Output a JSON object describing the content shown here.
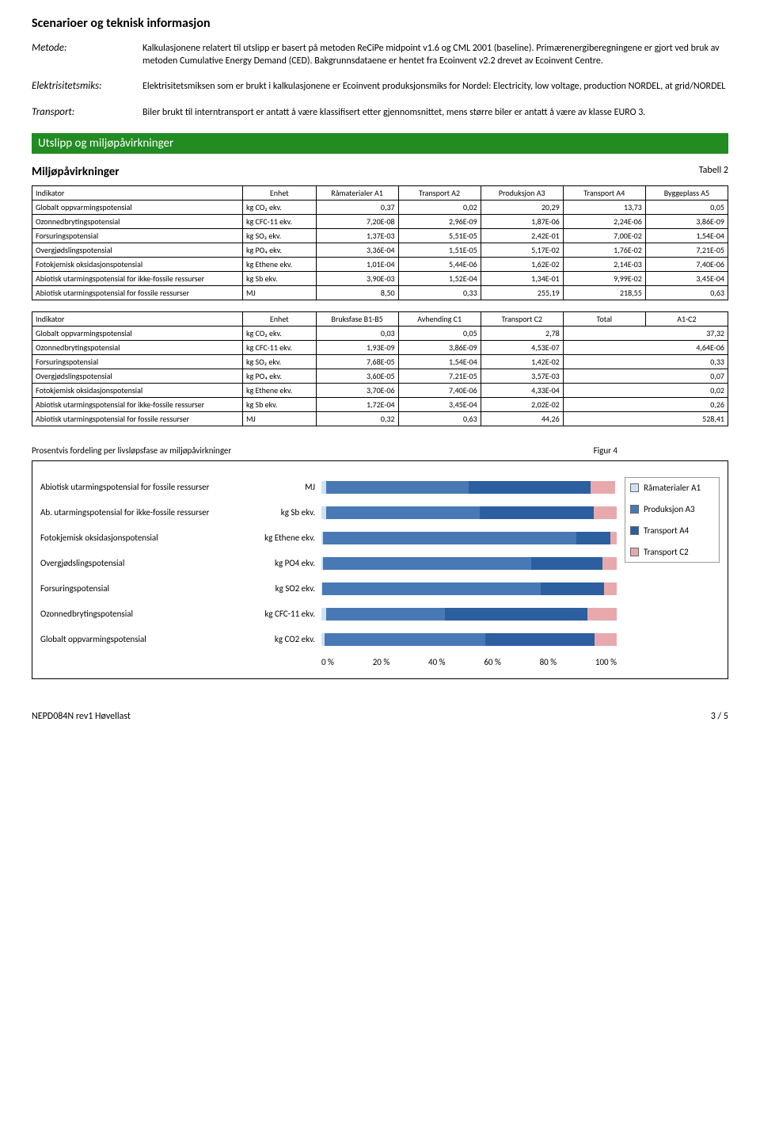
{
  "page_title": "Scenarioer og teknisk informasjon",
  "metode": {
    "label": "Metode:",
    "text": "Kalkulasjonene relatert til utslipp er basert på metoden ReCiPe midpoint v1.6 og CML 2001 (baseline). Primærenergiberegningene er gjort ved bruk av metoden Cumulative Energy Demand (CED). Bakgrunnsdataene er hentet fra Ecoinvent v2.2 drevet av Ecoinvent Centre."
  },
  "elektrisitetsmiks": {
    "label": "Elektrisitetsmiks:",
    "text": "Elektrisitetsmiksen som er brukt i kalkulasjonene er Ecoinvent produksjonsmiks for Nordel: Electricity, low voltage, production NORDEL, at grid/NORDEL"
  },
  "transport": {
    "label": "Transport:",
    "text": "Biler brukt til interntransport er antatt å være klassifisert etter gjennomsnittet, mens større biler er antatt å være av klasse EURO 3."
  },
  "green_bar": "Utslipp og miljøpåvirkninger",
  "miljopavirkninger": {
    "heading": "Miljøpåvirkninger",
    "tabell_label": "Tabell 2"
  },
  "table1": {
    "columns": [
      "Indikator",
      "Enhet",
      "Råmaterialer A1",
      "Transport A2",
      "Produksjon A3",
      "Transport A4",
      "Byggeplass A5"
    ],
    "rows": [
      [
        "Globalt oppvarmingspotensial",
        "kg CO₂ ekv.",
        "0,37",
        "0,02",
        "20,29",
        "13,73",
        "0,05"
      ],
      [
        "Ozonnedbrytingspotensial",
        "kg CFC-11 ekv.",
        "7,20E-08",
        "2,96E-09",
        "1,87E-06",
        "2,24E-06",
        "3,86E-09"
      ],
      [
        "Forsuringspotensial",
        "kg SO₂ ekv.",
        "1,37E-03",
        "5,51E-05",
        "2,42E-01",
        "7,00E-02",
        "1,54E-04"
      ],
      [
        "Overgjødslingspotensial",
        "kg PO₄ ekv.",
        "3,36E-04",
        "1,51E-05",
        "5,17E-02",
        "1,76E-02",
        "7,21E-05"
      ],
      [
        "Fotokjemisk oksidasjonspotensial",
        "kg Ethene ekv.",
        "1,01E-04",
        "5,44E-06",
        "1,62E-02",
        "2,14E-03",
        "7,40E-06"
      ],
      [
        "Abiotisk utarmingspotensial for ikke-fossile ressurser",
        "kg Sb ekv.",
        "3,90E-03",
        "1,52E-04",
        "1,34E-01",
        "9,99E-02",
        "3,45E-04"
      ],
      [
        "Abiotisk utarmingspotensial for fossile ressurser",
        "MJ",
        "8,50",
        "0,33",
        "255,19",
        "218,55",
        "0,63"
      ]
    ]
  },
  "table2": {
    "columns": [
      "Indikator",
      "Enhet",
      "Bruksfase B1-B5",
      "Avhending C1",
      "Transport C2",
      "Total",
      "A1-C2"
    ],
    "rows": [
      [
        "Globalt oppvarmingspotensial",
        "kg CO₂ ekv.",
        "0,03",
        "0,05",
        "2,78",
        "37,32"
      ],
      [
        "Ozonnedbrytingspotensial",
        "kg CFC-11 ekv.",
        "1,93E-09",
        "3,86E-09",
        "4,53E-07",
        "4,64E-06"
      ],
      [
        "Forsuringspotensial",
        "kg SO₂ ekv.",
        "7,68E-05",
        "1,54E-04",
        "1,42E-02",
        "0,33"
      ],
      [
        "Overgjødslingspotensial",
        "kg PO₄ ekv.",
        "3,60E-05",
        "7,21E-05",
        "3,57E-03",
        "0,07"
      ],
      [
        "Fotokjemisk oksidasjonspotensial",
        "kg Ethene ekv.",
        "3,70E-06",
        "7,40E-06",
        "4,33E-04",
        "0,02"
      ],
      [
        "Abiotisk utarmingspotensial for ikke-fossile ressurser",
        "kg Sb ekv.",
        "1,72E-04",
        "3,45E-04",
        "2,02E-02",
        "0,26"
      ],
      [
        "Abiotisk utarmingspotensial for fossile ressurser",
        "MJ",
        "0,32",
        "0,63",
        "44,26",
        "528,41"
      ]
    ]
  },
  "chart": {
    "title": "Prosentvis fordeling per livsløpsfase av miljøpåvirkninger",
    "figur_label": "Figur 4",
    "colors": {
      "A1": "#cde3f5",
      "A3": "#4879b5",
      "A4": "#2b5fa0",
      "C2": "#e8a9ad"
    },
    "legend": [
      {
        "label": "Råmaterialer A1",
        "color": "#cde3f5"
      },
      {
        "label": "Produksjon A3",
        "color": "#4879b5"
      },
      {
        "label": "Transport A4",
        "color": "#2b5fa0"
      },
      {
        "label": "Transport C2",
        "color": "#e8a9ad"
      }
    ],
    "bars": [
      {
        "label": "Abiotisk utarmingspotensial for fossile ressurser",
        "unit": "MJ",
        "seg": [
          1.6,
          48.3,
          41.3,
          8.4
        ]
      },
      {
        "label": "Ab. utarmingspotensial for ikke-fossile ressurser",
        "unit": "kg Sb ekv.",
        "seg": [
          1.5,
          52.0,
          38.7,
          7.8
        ]
      },
      {
        "label": "Fotokjemisk oksidasjonspotensial",
        "unit": "kg Ethene ekv.",
        "seg": [
          0.5,
          86.7,
          11.5,
          2.3
        ]
      },
      {
        "label": "Overgjødslingspotensial",
        "unit": "kg PO4 ekv.",
        "seg": [
          0.5,
          70.7,
          24.1,
          4.9
        ]
      },
      {
        "label": "Forsuringspotensial",
        "unit": "kg SO2 ekv.",
        "seg": [
          0.4,
          73.9,
          21.4,
          4.3
        ]
      },
      {
        "label": "Ozonnedbrytingspotensial",
        "unit": "kg CFC-11 ekv.",
        "seg": [
          1.6,
          40.3,
          48.3,
          9.8
        ]
      },
      {
        "label": "Globalt oppvarmingspotensial",
        "unit": "kg CO2 ekv.",
        "seg": [
          1.0,
          54.6,
          36.9,
          7.5
        ]
      }
    ],
    "axis": [
      "0 %",
      "20 %",
      "40 %",
      "60 %",
      "80 %",
      "100 %"
    ]
  },
  "footer": {
    "left": "NEPD084N rev1 Høvellast",
    "right": "3 / 5"
  }
}
